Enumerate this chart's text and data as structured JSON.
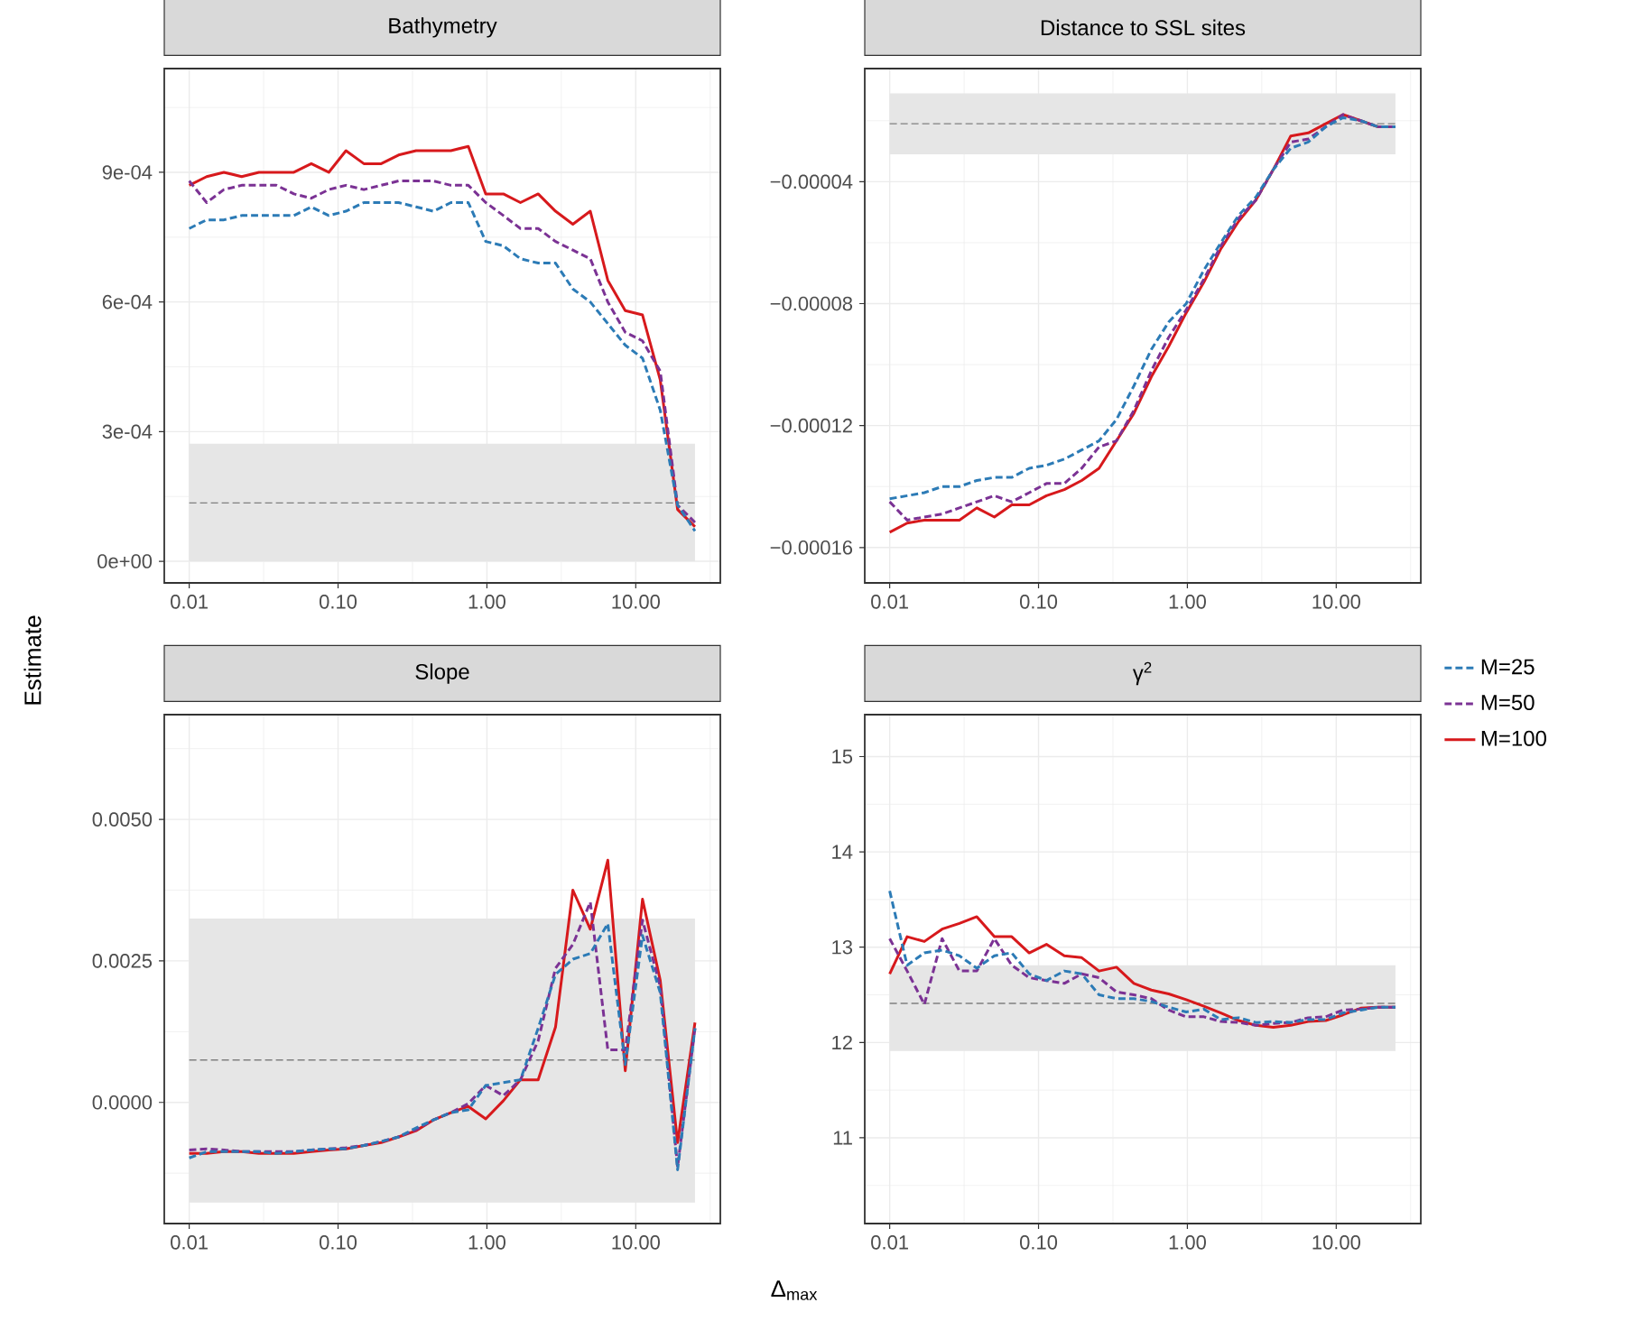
{
  "chart_data": [
    {
      "type": "line",
      "title": "Bathymetry",
      "ylabel": "Estimate",
      "log": "x",
      "grid": true,
      "x": [
        0.01,
        0.0131,
        0.0171,
        0.0225,
        0.0294,
        0.0385,
        0.0505,
        0.0661,
        0.0866,
        0.113,
        0.149,
        0.195,
        0.255,
        0.334,
        0.437,
        0.573,
        0.75,
        0.982,
        1.29,
        1.68,
        2.21,
        2.89,
        3.78,
        4.95,
        6.49,
        8.5,
        11.1,
        14.6,
        19.1,
        25
      ],
      "xlim": [
        0.0068,
        37
      ],
      "xticks": [
        {
          "value": 0.01,
          "label": "0.01"
        },
        {
          "value": 0.1,
          "label": "0.10"
        },
        {
          "value": 1,
          "label": "1.00"
        },
        {
          "value": 10,
          "label": "10.00"
        }
      ],
      "ylim": [
        -5e-05,
        0.00114
      ],
      "yticks": [
        {
          "value": 0,
          "label": "0e+00"
        },
        {
          "value": 0.0003,
          "label": "3e-04"
        },
        {
          "value": 0.0006,
          "label": "6e-04"
        },
        {
          "value": 0.0009,
          "label": "9e-04"
        }
      ],
      "bands": [
        {
          "axis": "y",
          "from": 0,
          "to": 0.000272,
          "color": "#e6e6e6"
        }
      ],
      "ref_lines": [
        {
          "axis": "y",
          "value": 0.000135,
          "color": "#808080",
          "line_style": "dashed"
        }
      ],
      "series": [
        {
          "color": "#2c7bb6",
          "line_style": "dashed",
          "values": [
            0.00077,
            0.00079,
            0.00079,
            0.0008,
            0.0008,
            0.0008,
            0.0008,
            0.00082,
            0.0008,
            0.00081,
            0.00083,
            0.00083,
            0.00083,
            0.00082,
            0.00081,
            0.00083,
            0.00083,
            0.00074,
            0.00073,
            0.0007,
            0.00069,
            0.00069,
            0.00063,
            0.0006,
            0.00055,
            0.0005,
            0.00047,
            0.00035,
            0.00013,
            7e-05
          ]
        },
        {
          "color": "#7b3294",
          "line_style": "dashed",
          "values": [
            0.00088,
            0.00083,
            0.00086,
            0.00087,
            0.00087,
            0.00087,
            0.00085,
            0.00084,
            0.00086,
            0.00087,
            0.00086,
            0.00087,
            0.00088,
            0.00088,
            0.00088,
            0.00087,
            0.00087,
            0.00083,
            0.0008,
            0.00077,
            0.00077,
            0.00074,
            0.00072,
            0.0007,
            0.0006,
            0.00053,
            0.00051,
            0.00044,
            0.00013,
            9e-05
          ]
        },
        {
          "color": "#d7191c",
          "line_style": "solid",
          "values": [
            0.00087,
            0.00089,
            0.0009,
            0.00089,
            0.0009,
            0.0009,
            0.0009,
            0.00092,
            0.0009,
            0.00095,
            0.00092,
            0.00092,
            0.00094,
            0.00095,
            0.00095,
            0.00095,
            0.00096,
            0.00085,
            0.00085,
            0.00083,
            0.00085,
            0.00081,
            0.00078,
            0.00081,
            0.00065,
            0.00058,
            0.00057,
            0.00042,
            0.00012,
            8e-05
          ]
        }
      ]
    },
    {
      "type": "line",
      "title": "Distance to SSL sites",
      "log": "x",
      "grid": true,
      "legend": "right",
      "x": [
        0.01,
        0.0131,
        0.0171,
        0.0225,
        0.0294,
        0.0385,
        0.0505,
        0.0661,
        0.0866,
        0.113,
        0.149,
        0.195,
        0.255,
        0.334,
        0.437,
        0.573,
        0.75,
        0.982,
        1.29,
        1.68,
        2.21,
        2.89,
        3.78,
        4.95,
        6.49,
        8.5,
        11.1,
        14.6,
        19.1,
        25
      ],
      "xlim": [
        0.0068,
        37
      ],
      "xticks": [
        {
          "value": 0.01,
          "label": "0.01"
        },
        {
          "value": 0.1,
          "label": "0.10"
        },
        {
          "value": 1,
          "label": "1.00"
        },
        {
          "value": 10,
          "label": "10.00"
        }
      ],
      "ylim": [
        -0.0001716,
        -2.9e-06
      ],
      "yticks": [
        {
          "value": -0.00016,
          "label": "−0.00016"
        },
        {
          "value": -0.00012,
          "label": "−0.00012"
        },
        {
          "value": -8e-05,
          "label": "−0.00008"
        },
        {
          "value": -4e-05,
          "label": "−0.00004"
        }
      ],
      "bands": [
        {
          "axis": "y",
          "from": -3.1e-05,
          "to": -1.1e-05,
          "color": "#e6e6e6"
        }
      ],
      "ref_lines": [
        {
          "axis": "y",
          "value": -2.1e-05,
          "color": "#808080",
          "line_style": "dashed"
        }
      ],
      "series": [
        {
          "name": "M=25",
          "color": "#2c7bb6",
          "line_style": "dashed",
          "values": [
            -0.000144,
            -0.000143,
            -0.000142,
            -0.00014,
            -0.00014,
            -0.000138,
            -0.000137,
            -0.000137,
            -0.000134,
            -0.000133,
            -0.000131,
            -0.000128,
            -0.000125,
            -0.000118,
            -0.000107,
            -9.5e-05,
            -8.6e-05,
            -8e-05,
            -6.9e-05,
            -6e-05,
            -5.1e-05,
            -4.5e-05,
            -3.6e-05,
            -2.9e-05,
            -2.7e-05,
            -2.2e-05,
            -1.9e-05,
            -2e-05,
            -2.2e-05,
            -2.2e-05
          ]
        },
        {
          "name": "M=50",
          "color": "#7b3294",
          "line_style": "dashed",
          "values": [
            -0.000145,
            -0.000151,
            -0.00015,
            -0.000149,
            -0.000147,
            -0.000145,
            -0.000143,
            -0.000145,
            -0.000142,
            -0.000139,
            -0.000139,
            -0.000134,
            -0.000127,
            -0.000125,
            -0.000115,
            -0.000102,
            -9.1e-05,
            -8.2e-05,
            -7.2e-05,
            -6.1e-05,
            -5.2e-05,
            -4.6e-05,
            -3.6e-05,
            -2.7e-05,
            -2.6e-05,
            -2.2e-05,
            -1.8e-05,
            -2e-05,
            -2.2e-05,
            -2.2e-05
          ]
        },
        {
          "name": "M=100",
          "color": "#d7191c",
          "line_style": "solid",
          "values": [
            -0.000155,
            -0.000152,
            -0.000151,
            -0.000151,
            -0.000151,
            -0.000147,
            -0.00015,
            -0.000146,
            -0.000146,
            -0.000143,
            -0.000141,
            -0.000138,
            -0.000134,
            -0.000125,
            -0.000116,
            -0.000104,
            -9.4e-05,
            -8.3e-05,
            -7.3e-05,
            -6.2e-05,
            -5.3e-05,
            -4.6e-05,
            -3.6e-05,
            -2.5e-05,
            -2.4e-05,
            -2.1e-05,
            -1.8e-05,
            -2e-05,
            -2.2e-05,
            -2.2e-05
          ]
        }
      ]
    },
    {
      "type": "line",
      "title": "Slope",
      "xlabel": "Δ$_{max}$",
      "log": "x",
      "grid": true,
      "x": [
        0.01,
        0.0131,
        0.0171,
        0.0225,
        0.0294,
        0.0385,
        0.0505,
        0.0661,
        0.0866,
        0.113,
        0.149,
        0.195,
        0.255,
        0.334,
        0.437,
        0.573,
        0.75,
        0.982,
        1.29,
        1.68,
        2.21,
        2.89,
        3.78,
        4.95,
        6.49,
        8.5,
        11.1,
        14.6,
        19.1,
        25
      ],
      "xlim": [
        0.0068,
        37
      ],
      "xticks": [
        {
          "value": 0.01,
          "label": "0.01"
        },
        {
          "value": 0.1,
          "label": "0.10"
        },
        {
          "value": 1,
          "label": "1.00"
        },
        {
          "value": 10,
          "label": "10.00"
        }
      ],
      "ylim": [
        -0.00214,
        0.00685
      ],
      "yticks": [
        {
          "value": 0,
          "label": "0.0000"
        },
        {
          "value": 0.0025,
          "label": "0.0025"
        },
        {
          "value": 0.005,
          "label": "0.0050"
        }
      ],
      "bands": [
        {
          "axis": "y",
          "from": -0.00177,
          "to": 0.00325,
          "color": "#e6e6e6"
        }
      ],
      "ref_lines": [
        {
          "axis": "y",
          "value": 0.00075,
          "color": "#808080",
          "line_style": "dashed"
        }
      ],
      "series": [
        {
          "color": "#2c7bb6",
          "line_style": "dashed",
          "values": [
            -0.00098,
            -0.00087,
            -0.00087,
            -0.00087,
            -0.00087,
            -0.0009,
            -0.00087,
            -0.00084,
            -0.00082,
            -0.00082,
            -0.00076,
            -0.00069,
            -0.00061,
            -0.00045,
            -0.00031,
            -0.00018,
            -0.00013,
            0.0003,
            0.00035,
            0.0004,
            0.00131,
            0.00226,
            0.00253,
            0.00263,
            0.00316,
            0.00067,
            0.00295,
            0.00194,
            -0.00119,
            0.00131
          ]
        },
        {
          "color": "#7b3294",
          "line_style": "dashed",
          "values": [
            -0.00084,
            -0.00082,
            -0.00084,
            -0.00087,
            -0.00087,
            -0.00087,
            -0.00087,
            -0.00084,
            -0.00082,
            -0.0008,
            -0.00076,
            -0.00069,
            -0.00061,
            -0.00048,
            -0.00031,
            -0.00018,
            -2e-05,
            0.0003,
            0.00012,
            0.0004,
            0.00109,
            0.00237,
            0.00279,
            0.00354,
            0.00093,
            0.00093,
            0.00322,
            0.00205,
            -0.00114,
            0.00131
          ]
        },
        {
          "color": "#d7191c",
          "line_style": "solid",
          "values": [
            -0.0009,
            -0.0009,
            -0.00087,
            -0.00087,
            -0.0009,
            -0.0009,
            -0.0009,
            -0.00087,
            -0.00084,
            -0.00082,
            -0.00076,
            -0.00071,
            -0.00061,
            -0.0005,
            -0.00031,
            -0.00018,
            -7e-05,
            -0.00029,
            3e-05,
            0.0004,
            0.0004,
            0.00133,
            0.00375,
            0.00306,
            0.00428,
            0.00056,
            0.00359,
            0.00216,
            -0.00071,
            0.00141
          ]
        }
      ]
    },
    {
      "type": "line",
      "title": "γ$^{2}$",
      "log": "x",
      "grid": true,
      "x": [
        0.01,
        0.0131,
        0.0171,
        0.0225,
        0.0294,
        0.0385,
        0.0505,
        0.0661,
        0.0866,
        0.113,
        0.149,
        0.195,
        0.255,
        0.334,
        0.437,
        0.573,
        0.75,
        0.982,
        1.29,
        1.68,
        2.21,
        2.89,
        3.78,
        4.95,
        6.49,
        8.5,
        11.1,
        14.6,
        19.1,
        25
      ],
      "xlim": [
        0.0068,
        37
      ],
      "xticks": [
        {
          "value": 0.01,
          "label": "0.01"
        },
        {
          "value": 0.1,
          "label": "0.10"
        },
        {
          "value": 1,
          "label": "1.00"
        },
        {
          "value": 10,
          "label": "10.00"
        }
      ],
      "ylim": [
        10.1,
        15.44
      ],
      "yticks": [
        11,
        12,
        13,
        14,
        15
      ],
      "bands": [
        {
          "axis": "y",
          "from": 11.91,
          "to": 12.81,
          "color": "#e6e6e6"
        }
      ],
      "ref_lines": [
        {
          "axis": "y",
          "value": 12.41,
          "color": "#808080",
          "line_style": "dashed"
        }
      ],
      "series": [
        {
          "color": "#2c7bb6",
          "line_style": "dashed",
          "values": [
            13.59,
            12.81,
            12.94,
            12.97,
            12.91,
            12.78,
            12.91,
            12.94,
            12.72,
            12.65,
            12.75,
            12.72,
            12.5,
            12.46,
            12.46,
            12.43,
            12.37,
            12.32,
            12.35,
            12.24,
            12.26,
            12.21,
            12.22,
            12.21,
            12.24,
            12.24,
            12.31,
            12.34,
            12.37,
            12.37
          ]
        },
        {
          "color": "#7b3294",
          "line_style": "dashed",
          "values": [
            13.09,
            12.75,
            12.4,
            13.09,
            12.75,
            12.75,
            13.09,
            12.81,
            12.68,
            12.65,
            12.62,
            12.72,
            12.68,
            12.53,
            12.5,
            12.46,
            12.34,
            12.27,
            12.27,
            12.22,
            12.21,
            12.18,
            12.2,
            12.21,
            12.26,
            12.27,
            12.34,
            12.35,
            12.37,
            12.37
          ]
        },
        {
          "color": "#d7191c",
          "line_style": "solid",
          "values": [
            12.72,
            13.11,
            13.06,
            13.19,
            13.25,
            13.32,
            13.11,
            13.11,
            12.94,
            13.03,
            12.91,
            12.89,
            12.75,
            12.79,
            12.62,
            12.55,
            12.51,
            12.45,
            12.38,
            12.31,
            12.23,
            12.18,
            12.16,
            12.18,
            12.22,
            12.23,
            12.29,
            12.36,
            12.37,
            12.37
          ]
        }
      ]
    }
  ]
}
